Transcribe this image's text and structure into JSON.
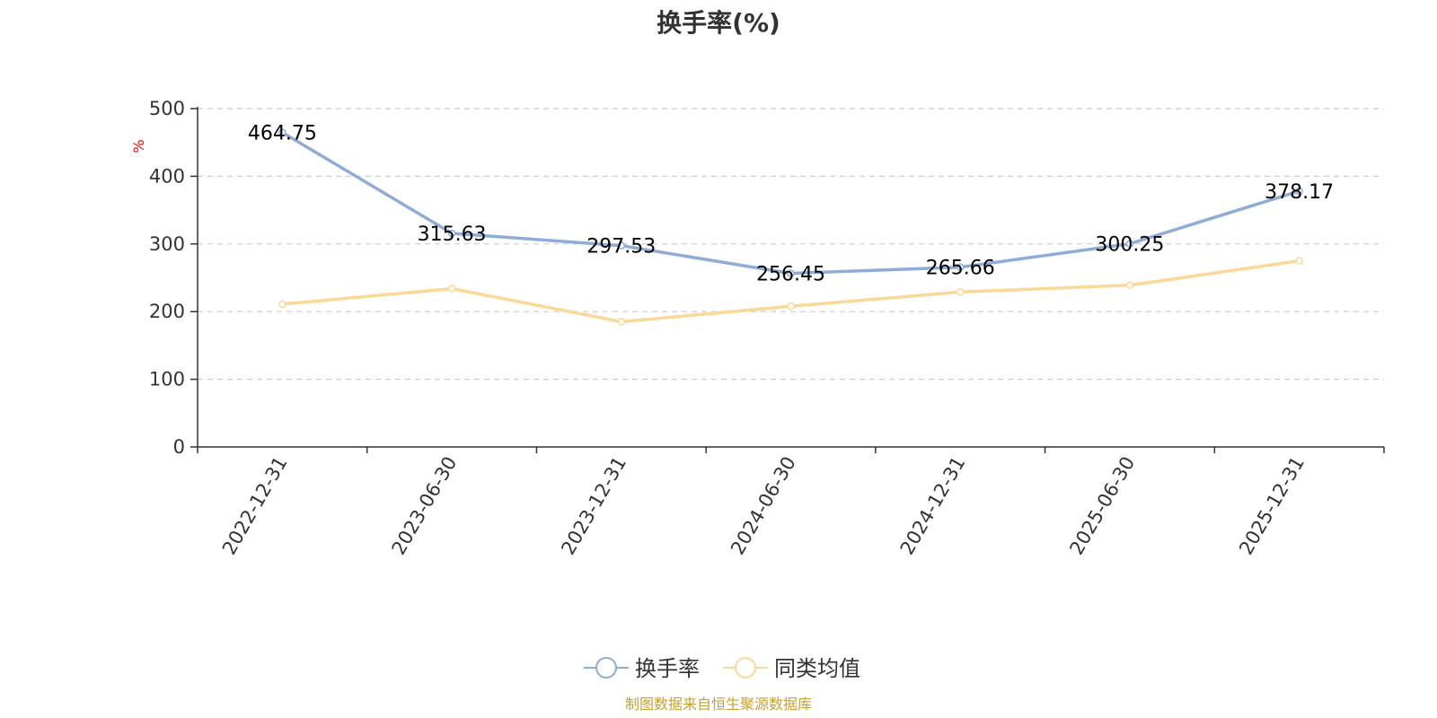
{
  "chart_data": {
    "type": "line",
    "title": "换手率(%)",
    "ylabel": "%",
    "xlabel": "",
    "categories": [
      "2022-12-31",
      "2023-06-30",
      "2023-12-31",
      "2024-06-30",
      "2024-12-31",
      "2025-06-30",
      "2025-12-31"
    ],
    "series": [
      {
        "name": "换手率",
        "color": "#8eacd8",
        "values": [
          464.75,
          315.63,
          297.53,
          256.45,
          265.66,
          300.25,
          378.17
        ],
        "labels": [
          "464.75",
          "315.63",
          "297.53",
          "256.45",
          "265.66",
          "300.25",
          "378.17"
        ]
      },
      {
        "name": "同类均值",
        "color": "#fbd896",
        "values": [
          211,
          234,
          185,
          208,
          229,
          239,
          275
        ]
      }
    ],
    "ylim": [
      0,
      500
    ],
    "yticks": [
      0,
      100,
      200,
      300,
      400,
      500
    ],
    "grid": true,
    "legend_position": "bottom-center",
    "unit_color": "#ff0000"
  },
  "source_text": "制图数据来自恒生聚源数据库",
  "source_color": "#c8a032"
}
